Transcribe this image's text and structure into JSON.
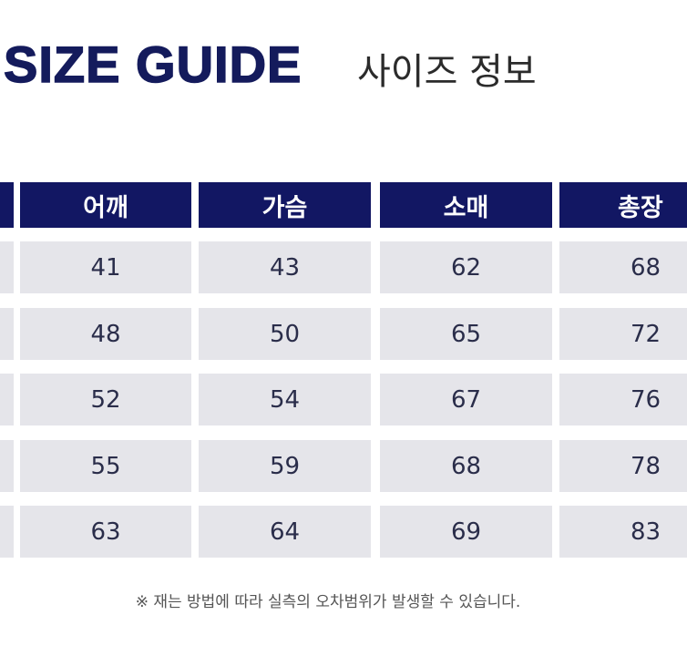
{
  "header": {
    "title": "SIZE GUIDE",
    "subtitle": "사이즈 정보"
  },
  "table": {
    "headers": [
      "어깨",
      "가슴",
      "소매",
      "총장"
    ],
    "rows": [
      [
        "41",
        "43",
        "62",
        "68"
      ],
      [
        "48",
        "50",
        "65",
        "72"
      ],
      [
        "52",
        "54",
        "67",
        "76"
      ],
      [
        "55",
        "59",
        "68",
        "78"
      ],
      [
        "63",
        "64",
        "69",
        "83"
      ]
    ]
  },
  "note": "※ 재는 방법에 따라 실측의 오차범위가 발생할 수 있습니다."
}
